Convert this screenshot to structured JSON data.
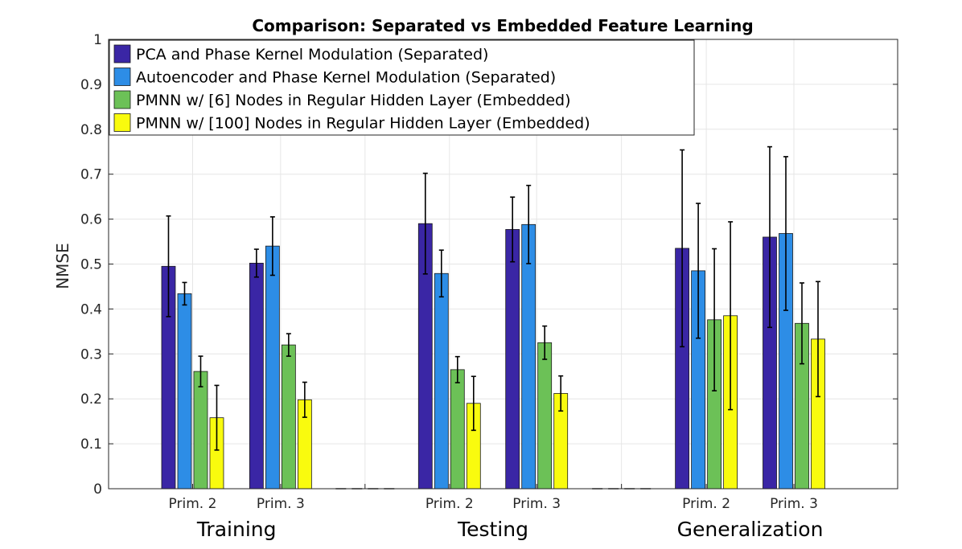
{
  "chart_data": {
    "type": "bar",
    "title": "Comparison: Separated vs Embedded Feature Learning",
    "xlabel": "",
    "ylabel": "NMSE",
    "ylim": [
      0,
      1
    ],
    "yticks": [
      "0",
      "0.1",
      "0.2",
      "0.3",
      "0.4",
      "0.5",
      "0.6",
      "0.7",
      "0.8",
      "0.9",
      "1"
    ],
    "grid": true,
    "legend_position": "top-left",
    "groups": [
      {
        "name": "Training",
        "categories": [
          "Prim. 2",
          "Prim. 3"
        ]
      },
      {
        "name": "Testing",
        "categories": [
          "Prim. 2",
          "Prim. 3"
        ]
      },
      {
        "name": "Generalization",
        "categories": [
          "Prim. 2",
          "Prim. 3"
        ]
      }
    ],
    "categories": [
      "Training Prim. 2",
      "Training Prim. 3",
      "Testing Prim. 2",
      "Testing Prim. 3",
      "Generalization Prim. 2",
      "Generalization Prim. 3"
    ],
    "series": [
      {
        "name": "PCA and Phase Kernel Modulation (Separated)",
        "color": "#3a26a5",
        "values": [
          0.495,
          0.502,
          0.59,
          0.577,
          0.535,
          0.56
        ],
        "errors": [
          0.112,
          0.031,
          0.112,
          0.072,
          0.219,
          0.201
        ]
      },
      {
        "name": "Autoencoder and Phase Kernel Modulation (Separated)",
        "color": "#2d8de6",
        "values": [
          0.434,
          0.54,
          0.479,
          0.588,
          0.485,
          0.568
        ],
        "errors": [
          0.025,
          0.065,
          0.052,
          0.087,
          0.15,
          0.171
        ]
      },
      {
        "name": "PMNN w/ [6] Nodes in Regular Hidden Layer (Embedded)",
        "color": "#6cc157",
        "values": [
          0.261,
          0.32,
          0.265,
          0.325,
          0.376,
          0.368
        ],
        "errors": [
          0.034,
          0.025,
          0.029,
          0.037,
          0.158,
          0.09
        ]
      },
      {
        "name": "PMNN w/ [100] Nodes in Regular Hidden Layer (Embedded)",
        "color": "#f9fb0e",
        "values": [
          0.158,
          0.198,
          0.19,
          0.212,
          0.385,
          0.333
        ],
        "errors": [
          0.072,
          0.039,
          0.06,
          0.039,
          0.209,
          0.128
        ]
      }
    ]
  }
}
